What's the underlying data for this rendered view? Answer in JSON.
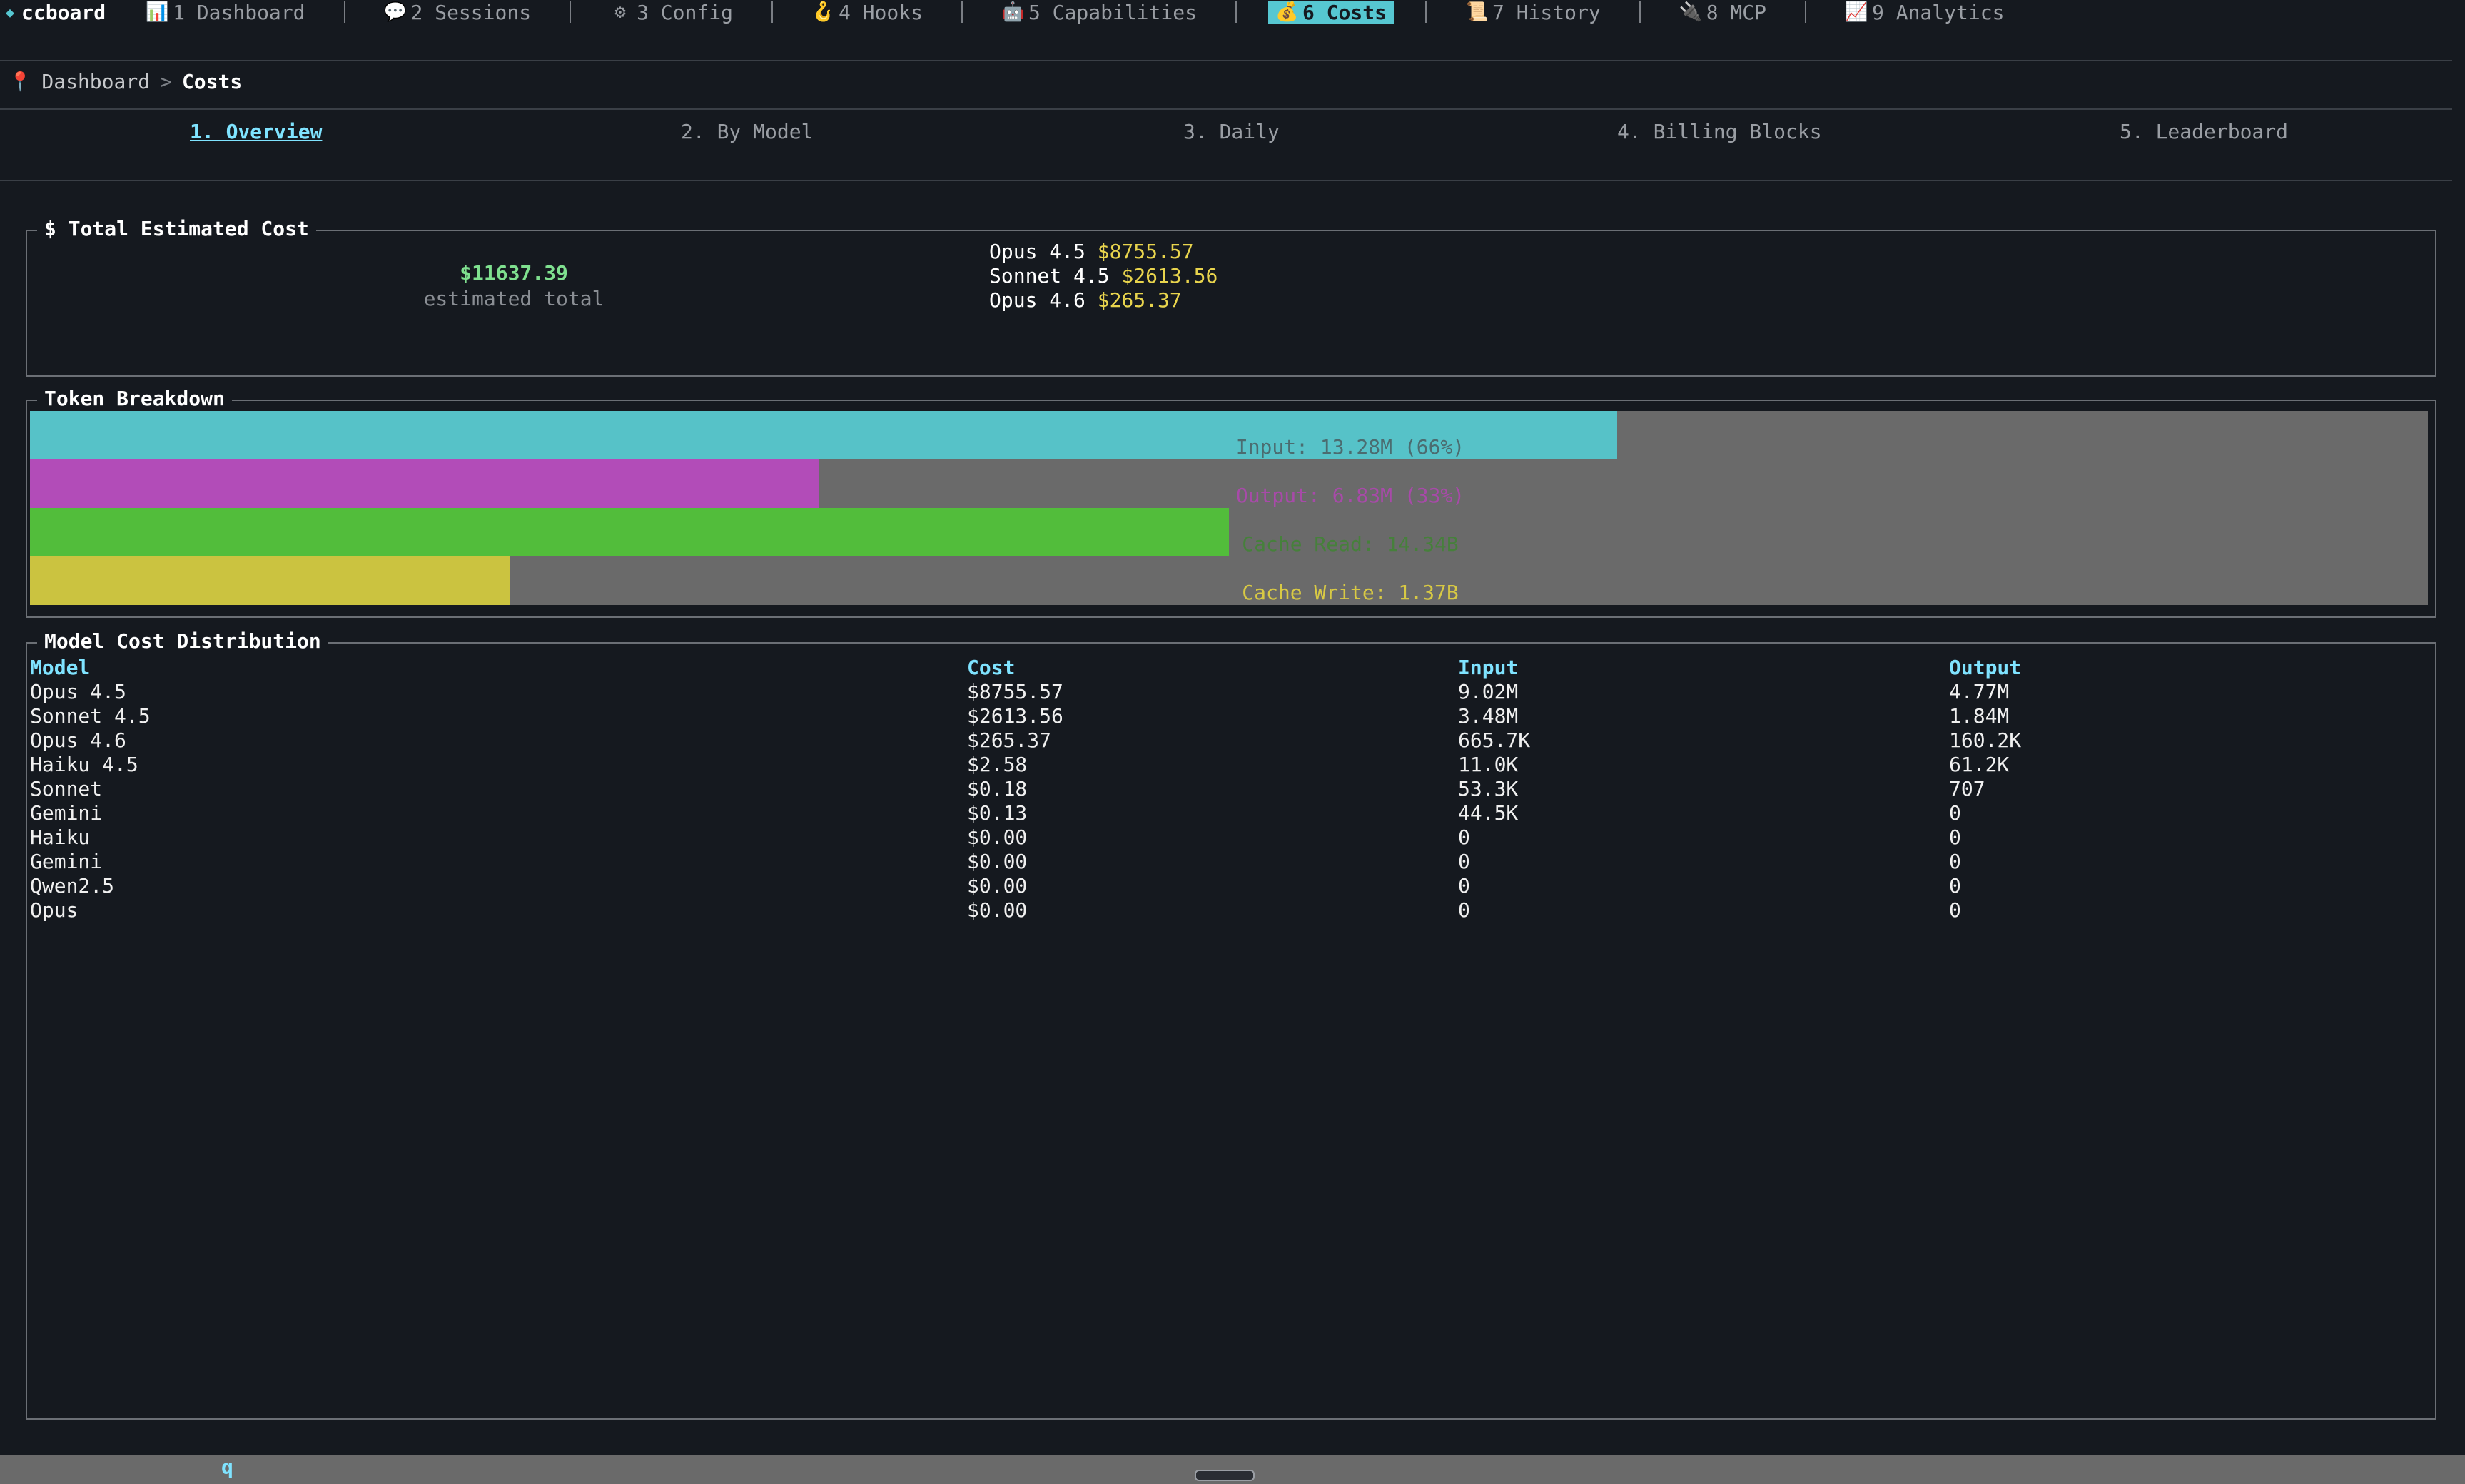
{
  "app": {
    "title": "ccboard"
  },
  "tabs": [
    {
      "label": "1 Dashboard",
      "icon": "bar-chart-icon"
    },
    {
      "label": "2 Sessions",
      "icon": "speech-bubble-icon"
    },
    {
      "label": "3 Config",
      "icon": "gear-icon"
    },
    {
      "label": "4 Hooks",
      "icon": "hook-icon"
    },
    {
      "label": "5 Capabilities",
      "icon": "robot-icon"
    },
    {
      "label": "6 Costs",
      "icon": "money-bag-icon",
      "active": true
    },
    {
      "label": "7 History",
      "icon": "scroll-icon"
    },
    {
      "label": "8 MCP",
      "icon": "plug-icon"
    },
    {
      "label": "9 Analytics",
      "icon": "line-chart-icon"
    }
  ],
  "breadcrumb": {
    "root": "Dashboard",
    "sep": ">",
    "current": "Costs"
  },
  "subtabs": [
    {
      "label": "1. Overview",
      "active": true
    },
    {
      "label": "2. By Model"
    },
    {
      "label": "3. Daily"
    },
    {
      "label": "4. Billing Blocks"
    },
    {
      "label": "5. Leaderboard"
    }
  ],
  "total_cost": {
    "title": "$ Total Estimated Cost",
    "value": "$11637.39",
    "subtitle": "estimated total",
    "models": [
      {
        "name": "Opus 4.5",
        "cost": "$8755.57"
      },
      {
        "name": "Sonnet 4.5",
        "cost": "$2613.56"
      },
      {
        "name": "Opus 4.6",
        "cost": "$265.37"
      }
    ]
  },
  "token_breakdown": {
    "title": "Token Breakdown",
    "bars": [
      {
        "label": "Input: 13.28M (66%)",
        "fraction": 0.662,
        "color": "#56c2c8",
        "label_color": "#4b6c70"
      },
      {
        "label": "Output: 6.83M (33%)",
        "fraction": 0.329,
        "color": "#b24cb8",
        "label_color": "#a84aa9"
      },
      {
        "label": "Cache Read: 14.34B",
        "fraction": 0.5,
        "color": "#52bd3b",
        "label_color": "#46803b"
      },
      {
        "label": "Cache Write: 1.37B",
        "fraction": 0.2,
        "color": "#cbc340",
        "label_color": "#d8c944"
      }
    ]
  },
  "model_table": {
    "title": "Model Cost Distribution",
    "headers": [
      "Model",
      "Cost",
      "Input",
      "Output"
    ],
    "rows": [
      [
        "Opus 4.5",
        "$8755.57",
        "9.02M",
        "4.77M"
      ],
      [
        "Sonnet 4.5",
        "$2613.56",
        "3.48M",
        "1.84M"
      ],
      [
        "Opus 4.6",
        "$265.37",
        "665.7K",
        "160.2K"
      ],
      [
        "Haiku 4.5",
        "$2.58",
        "11.0K",
        "61.2K"
      ],
      [
        "Sonnet",
        "$0.18",
        "53.3K",
        "707"
      ],
      [
        "Gemini",
        "$0.13",
        "44.5K",
        "0"
      ],
      [
        "Haiku",
        "$0.00",
        "0",
        "0"
      ],
      [
        "Gemini",
        "$0.00",
        "0",
        "0"
      ],
      [
        "Qwen2.5",
        "$0.00",
        "0",
        "0"
      ],
      [
        "Opus",
        "$0.00",
        "0",
        "0"
      ]
    ]
  },
  "footer": {
    "key_hint": "q"
  }
}
